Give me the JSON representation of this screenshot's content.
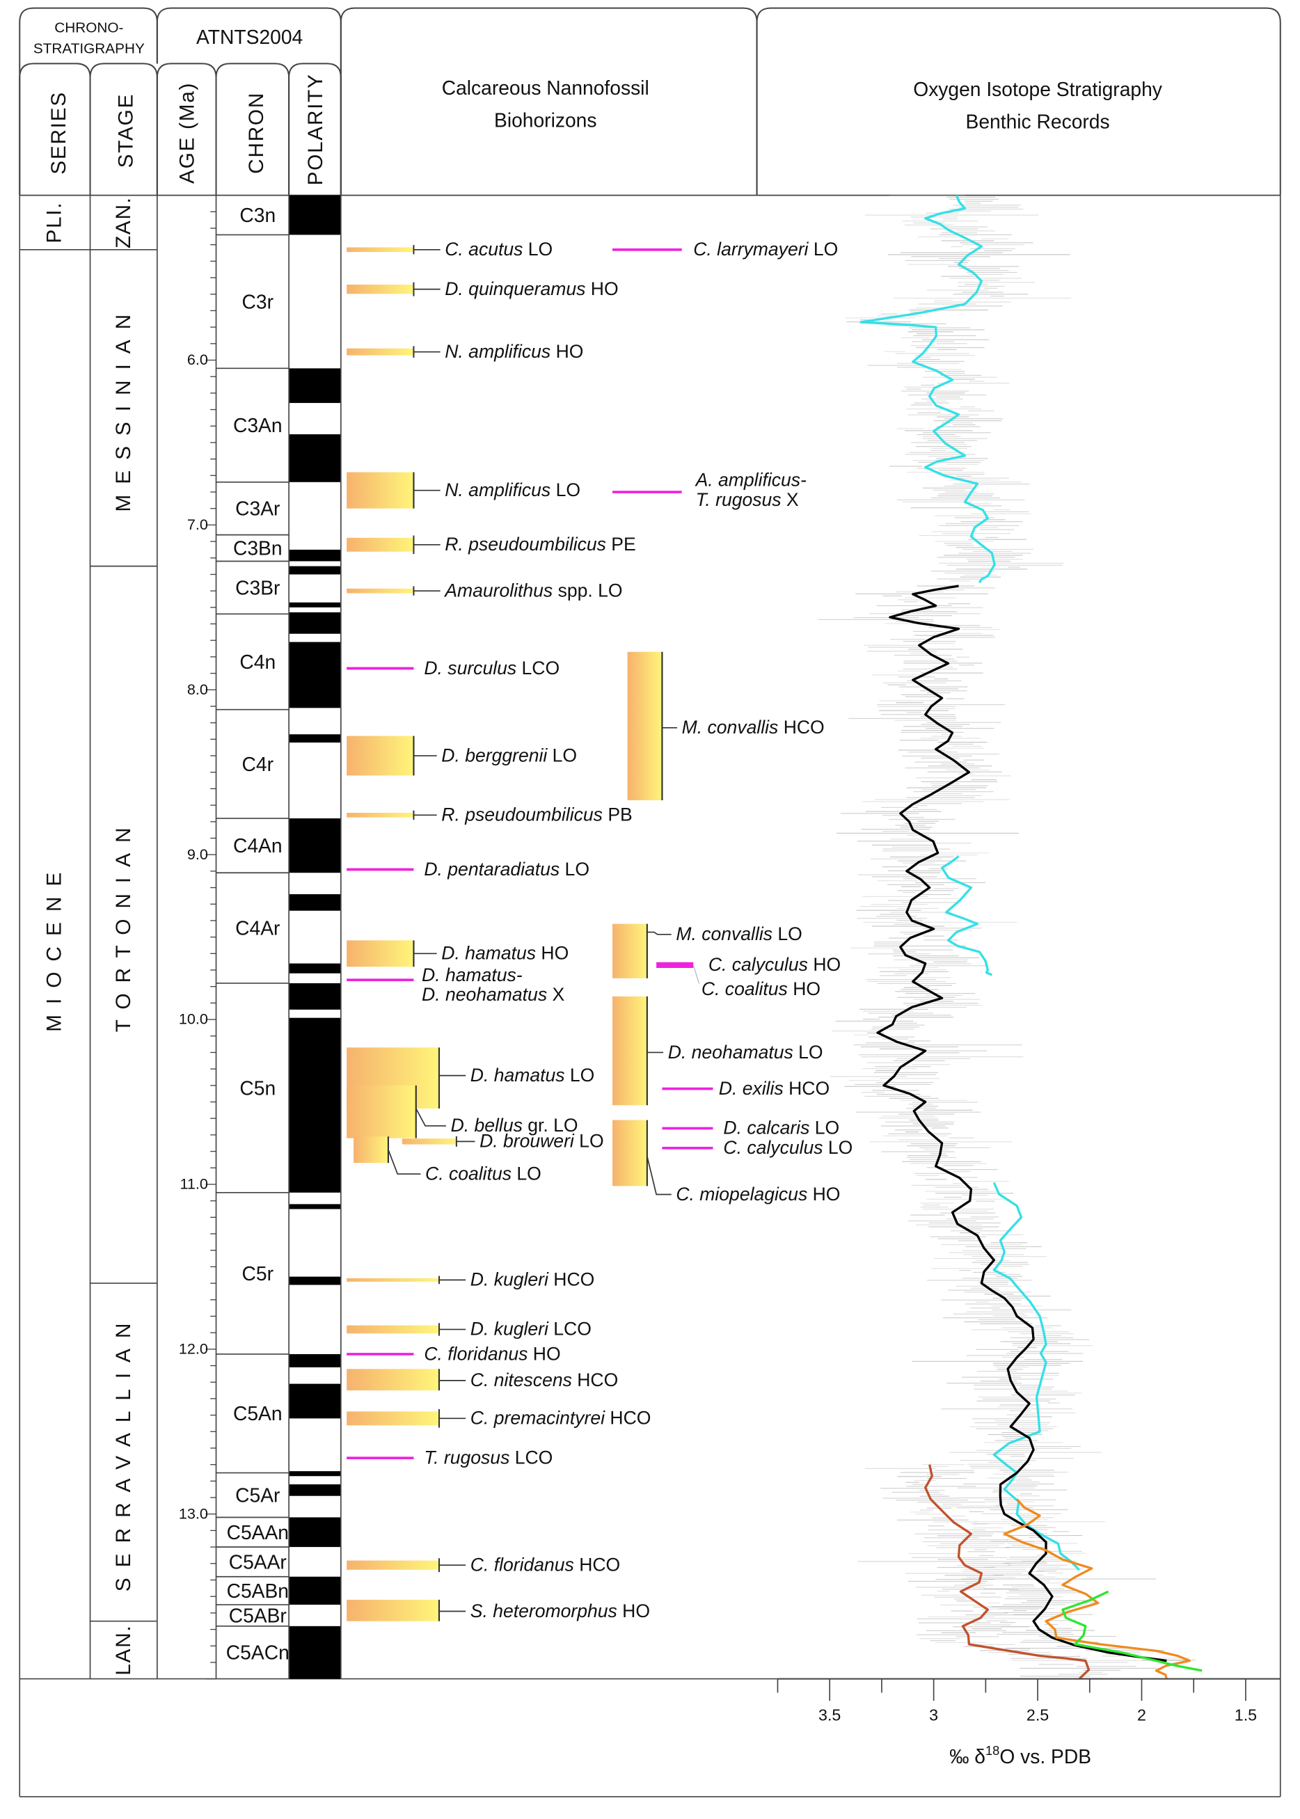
{
  "header": {
    "chrono_line1": "CHRONO-",
    "chrono_line2": "STRATIGRAPHY",
    "timescale": "ATNTS2004",
    "series": "SERIES",
    "stage": "STAGE",
    "age": "AGE (Ma)",
    "chron": "CHRON",
    "polarity": "POLARITY",
    "bio_line1": "Calcareous Nannofossil",
    "bio_line2": "Biohorizons",
    "iso_line1": "Oxygen Isotope Stratigraphy",
    "iso_line2": "Benthic Records"
  },
  "age_axis": {
    "min": 5.0,
    "max": 14.0,
    "labels": [
      "6.0",
      "7.0",
      "8.0",
      "9.0",
      "10.0",
      "11.0",
      "12.0",
      "13.0"
    ],
    "minor_step": 0.1
  },
  "series_units": [
    {
      "name": "PLI.",
      "top": 5.0,
      "base": 5.33
    },
    {
      "name": "MIOCENE",
      "top": 5.33,
      "base": 14.0
    }
  ],
  "stages": [
    {
      "name": "ZAN.",
      "top": 5.0,
      "base": 5.33
    },
    {
      "name": "MESSINIAN",
      "top": 5.33,
      "base": 7.25
    },
    {
      "name": "TORTONIAN",
      "top": 7.25,
      "base": 11.6
    },
    {
      "name": "SERRAVALLIAN",
      "top": 11.6,
      "base": 13.65
    },
    {
      "name": "LAN.",
      "top": 13.65,
      "base": 14.0
    }
  ],
  "chrons": [
    {
      "name": "C3n",
      "top": 5.0,
      "base": 5.24
    },
    {
      "name": "C3r",
      "top": 5.24,
      "base": 6.05
    },
    {
      "name": "C3An",
      "top": 6.05,
      "base": 6.74
    },
    {
      "name": "C3Ar",
      "top": 6.74,
      "base": 7.06
    },
    {
      "name": "C3Bn",
      "top": 7.06,
      "base": 7.22
    },
    {
      "name": "C3Br",
      "top": 7.22,
      "base": 7.54
    },
    {
      "name": "C4n",
      "top": 7.54,
      "base": 8.12
    },
    {
      "name": "C4r",
      "top": 8.12,
      "base": 8.78
    },
    {
      "name": "C4An",
      "top": 8.78,
      "base": 9.11
    },
    {
      "name": "C4Ar",
      "top": 9.11,
      "base": 9.78
    },
    {
      "name": "C5n",
      "top": 9.78,
      "base": 11.05
    },
    {
      "name": "C5r",
      "top": 11.05,
      "base": 12.03
    },
    {
      "name": "C5An",
      "top": 12.03,
      "base": 12.75
    },
    {
      "name": "C5Ar",
      "top": 12.75,
      "base": 13.02
    },
    {
      "name": "C5AAn",
      "top": 13.02,
      "base": 13.2
    },
    {
      "name": "C5AAr",
      "top": 13.2,
      "base": 13.38
    },
    {
      "name": "C5ABn",
      "top": 13.38,
      "base": 13.55
    },
    {
      "name": "C5ABr",
      "top": 13.55,
      "base": 13.68
    },
    {
      "name": "C5ACn",
      "top": 13.68,
      "base": 14.0
    }
  ],
  "normal_polarity": [
    [
      5.0,
      5.24
    ],
    [
      6.05,
      6.26
    ],
    [
      6.45,
      6.74
    ],
    [
      7.15,
      7.22
    ],
    [
      7.25,
      7.3
    ],
    [
      7.47,
      7.5
    ],
    [
      7.53,
      7.66
    ],
    [
      7.71,
      8.11
    ],
    [
      8.27,
      8.32
    ],
    [
      8.78,
      9.11
    ],
    [
      9.24,
      9.34
    ],
    [
      9.66,
      9.72
    ],
    [
      9.78,
      9.94
    ],
    [
      9.99,
      11.05
    ],
    [
      11.12,
      11.15
    ],
    [
      11.56,
      11.61
    ],
    [
      12.03,
      12.11
    ],
    [
      12.21,
      12.42
    ],
    [
      12.74,
      12.77
    ],
    [
      12.82,
      12.89
    ],
    [
      13.02,
      13.2
    ],
    [
      13.38,
      13.55
    ],
    [
      13.68,
      14.0
    ]
  ],
  "biohorizons": [
    {
      "taxon": "C. acutus",
      "event": "LO",
      "age": 5.33,
      "style": "bar"
    },
    {
      "taxon": "D. quinqueramus",
      "event": "HO",
      "age": 5.57,
      "style": "bar"
    },
    {
      "taxon": "N. amplificus",
      "event": "HO",
      "age": 5.95,
      "style": "bar"
    },
    {
      "taxon": "N. amplificus",
      "event": "LO",
      "age": 6.79,
      "range": [
        6.68,
        6.9
      ],
      "style": "box"
    },
    {
      "taxon": "R. pseudoumbilicus",
      "event": "PE",
      "age": 7.12,
      "style": "bar"
    },
    {
      "taxon": "Amaurolithus",
      "event": "spp. LO",
      "age": 7.4,
      "style": "bar"
    },
    {
      "taxon": "D. surculus",
      "event": "LCO",
      "age": 7.87,
      "style": "line"
    },
    {
      "taxon": "D. berggrenii",
      "event": "LO",
      "age": 8.4,
      "range": [
        8.28,
        8.52
      ],
      "style": "box"
    },
    {
      "taxon": "R. pseudoumbilicus",
      "event": "PB",
      "age": 8.76,
      "style": "bar"
    },
    {
      "taxon": "D. pentaradiatus",
      "event": "LO",
      "age": 9.09,
      "style": "line"
    },
    {
      "taxon": "D. hamatus",
      "event": "HO",
      "age": 9.6,
      "range": [
        9.52,
        9.68
      ],
      "style": "box"
    },
    {
      "taxon": "D. hamatus-",
      "taxon2": "D. neohamatus",
      "event": "X",
      "age": 9.76,
      "style": "line"
    },
    {
      "taxon": "D. hamatus",
      "event": "LO",
      "age": 10.34,
      "range": [
        10.17,
        10.54
      ],
      "style": "box"
    },
    {
      "taxon": "D. bellus",
      "event": "gr. LO",
      "age": 10.54,
      "range": [
        10.4,
        10.72
      ],
      "style": "box"
    },
    {
      "taxon": "D. brouweri",
      "event": "LO",
      "age": 10.74,
      "style": "bar"
    },
    {
      "taxon": "C. coalitus",
      "event": "LO",
      "age": 10.79,
      "range": [
        10.71,
        10.87
      ],
      "style": "box"
    },
    {
      "taxon": "D. kugleri",
      "event": "HCO",
      "age": 11.58,
      "style": "bar"
    },
    {
      "taxon": "D. kugleri",
      "event": "LCO",
      "age": 11.88,
      "style": "bar"
    },
    {
      "taxon": "C. floridanus",
      "event": "HO",
      "age": 12.03,
      "style": "line"
    },
    {
      "taxon": "C. nitescens",
      "event": "HCO",
      "age": 12.19,
      "range": [
        12.12,
        12.25
      ],
      "style": "box"
    },
    {
      "taxon": "C. premacintyrei",
      "event": "HCO",
      "age": 12.42,
      "style": "bar"
    },
    {
      "taxon": "T. rugosus",
      "event": "LCO",
      "age": 12.66,
      "style": "line"
    },
    {
      "taxon": "C. floridanus",
      "event": "HCO",
      "age": 13.31,
      "style": "bar"
    },
    {
      "taxon": "S. heteromorphus",
      "event": "HO",
      "age": 13.59,
      "range": [
        13.52,
        13.65
      ],
      "style": "box"
    },
    {
      "taxon": "C. larrymayeri",
      "event": "LO",
      "age": 5.33,
      "style": "line"
    },
    {
      "taxon": "A. amplificus-",
      "taxon2": "T. rugosus",
      "event": "X",
      "age": 6.8,
      "style": "line"
    },
    {
      "taxon": "M. convallis",
      "event": "HCO",
      "age": 8.23,
      "range": [
        7.77,
        8.67
      ],
      "style": "box"
    },
    {
      "taxon": "M. convallis",
      "event": "LO",
      "age": 9.47,
      "range": [
        9.42,
        9.75
      ],
      "style": "box"
    },
    {
      "taxon": "C. calyculus",
      "event": "HO",
      "age": 9.67,
      "style": "line"
    },
    {
      "taxon": "C. coalitus",
      "event": "HO",
      "age": 9.67,
      "style": "label"
    },
    {
      "taxon": "D. neohamatus",
      "event": "LO",
      "age": 10.2,
      "range": [
        9.86,
        10.52
      ],
      "style": "box"
    },
    {
      "taxon": "D. exilis",
      "event": "HCO",
      "age": 10.42,
      "style": "line"
    },
    {
      "taxon": "D. calcaris",
      "event": "LO",
      "age": 10.66,
      "style": "line"
    },
    {
      "taxon": "C. calyculus",
      "event": "LO",
      "age": 10.78,
      "style": "line"
    },
    {
      "taxon": "C. miopelagicus",
      "event": "HO",
      "age": 10.83,
      "range": [
        10.61,
        11.01
      ],
      "style": "box"
    }
  ],
  "colors": {
    "normal_polarity": "#000000",
    "bar_left": "#f6b26e",
    "bar_right": "#fff57a",
    "magenta": "#ee22dd",
    "frame": "#444444"
  },
  "chart_data": {
    "type": "line",
    "xlabel_prefix": "‰ δ",
    "xlabel_sup": "18",
    "xlabel_suffix": "O  vs. PDB",
    "x_reversed": true,
    "xlim": [
      3.75,
      1.35
    ],
    "x_ticks": [
      "3.5",
      "3",
      "2.5",
      "2",
      "1.5"
    ],
    "x_minor_step": 0.25,
    "y_axis": "age (Ma)",
    "ylim": [
      5.0,
      14.0
    ],
    "series": [
      {
        "color": "#35e0e6",
        "points": [
          [
            5.0,
            2.89
          ],
          [
            5.08,
            2.85
          ],
          [
            5.14,
            3.04
          ],
          [
            5.21,
            2.93
          ],
          [
            5.31,
            2.77
          ],
          [
            5.42,
            2.88
          ],
          [
            5.52,
            2.77
          ],
          [
            5.66,
            2.85
          ],
          [
            5.77,
            3.35
          ],
          [
            5.8,
            2.99
          ],
          [
            5.91,
            3.02
          ],
          [
            6.01,
            3.1
          ],
          [
            6.12,
            2.91
          ],
          [
            6.22,
            3.02
          ],
          [
            6.33,
            2.88
          ],
          [
            6.43,
            3.0
          ],
          [
            6.58,
            2.85
          ],
          [
            6.65,
            3.04
          ],
          [
            6.75,
            2.79
          ],
          [
            6.86,
            2.85
          ],
          [
            6.96,
            2.74
          ],
          [
            7.07,
            2.82
          ],
          [
            7.17,
            2.72
          ],
          [
            7.31,
            2.74
          ],
          [
            7.35,
            2.78
          ]
        ]
      },
      {
        "color": "#35e0e6",
        "points": [
          [
            9.01,
            2.88
          ],
          [
            9.08,
            2.96
          ],
          [
            9.2,
            2.82
          ],
          [
            9.35,
            2.94
          ],
          [
            9.42,
            2.79
          ],
          [
            9.52,
            2.93
          ],
          [
            9.59,
            2.78
          ],
          [
            9.7,
            2.74
          ],
          [
            9.73,
            2.72
          ]
        ]
      },
      {
        "color": "#35e0e6",
        "points": [
          [
            10.99,
            2.71
          ],
          [
            11.13,
            2.6
          ],
          [
            11.27,
            2.63
          ],
          [
            11.41,
            2.66
          ],
          [
            11.52,
            2.71
          ],
          [
            11.62,
            2.6
          ],
          [
            11.8,
            2.49
          ],
          [
            11.97,
            2.46
          ],
          [
            12.08,
            2.46
          ],
          [
            12.5,
            2.49
          ],
          [
            12.64,
            2.71
          ],
          [
            12.75,
            2.6
          ],
          [
            12.85,
            2.66
          ],
          [
            13.0,
            2.6
          ],
          [
            13.12,
            2.49
          ],
          [
            13.24,
            2.39
          ],
          [
            13.34,
            2.3
          ]
        ]
      },
      {
        "color": "#000000",
        "points": [
          [
            7.37,
            2.88
          ],
          [
            7.42,
            3.1
          ],
          [
            7.49,
            2.99
          ],
          [
            7.56,
            3.21
          ],
          [
            7.63,
            2.88
          ],
          [
            7.73,
            3.07
          ],
          [
            7.84,
            2.93
          ],
          [
            7.94,
            3.1
          ],
          [
            8.05,
            2.96
          ],
          [
            8.15,
            3.04
          ],
          [
            8.26,
            2.91
          ],
          [
            8.36,
            2.99
          ],
          [
            8.5,
            2.83
          ],
          [
            8.64,
            3.02
          ],
          [
            8.75,
            3.16
          ],
          [
            8.85,
            3.1
          ],
          [
            8.99,
            2.98
          ],
          [
            9.1,
            3.13
          ],
          [
            9.2,
            3.02
          ],
          [
            9.35,
            3.13
          ],
          [
            9.45,
            3.0
          ],
          [
            9.56,
            3.16
          ],
          [
            9.66,
            3.04
          ],
          [
            9.77,
            3.1
          ],
          [
            9.87,
            2.96
          ],
          [
            9.98,
            3.18
          ],
          [
            10.08,
            3.27
          ],
          [
            10.19,
            3.04
          ],
          [
            10.29,
            3.16
          ],
          [
            10.4,
            3.24
          ],
          [
            10.5,
            3.04
          ],
          [
            10.61,
            3.07
          ],
          [
            10.75,
            2.96
          ],
          [
            10.89,
            2.99
          ],
          [
            11.03,
            2.82
          ],
          [
            11.17,
            2.91
          ],
          [
            11.31,
            2.79
          ],
          [
            11.46,
            2.71
          ],
          [
            11.6,
            2.77
          ],
          [
            11.69,
            2.66
          ],
          [
            11.8,
            2.6
          ],
          [
            11.94,
            2.52
          ],
          [
            12.05,
            2.6
          ],
          [
            12.19,
            2.63
          ],
          [
            12.33,
            2.54
          ],
          [
            12.47,
            2.63
          ],
          [
            12.61,
            2.52
          ],
          [
            12.75,
            2.6
          ],
          [
            12.89,
            2.68
          ],
          [
            13.0,
            2.66
          ],
          [
            13.1,
            2.52
          ],
          [
            13.24,
            2.46
          ],
          [
            13.36,
            2.54
          ],
          [
            13.5,
            2.43
          ],
          [
            13.65,
            2.52
          ],
          [
            13.75,
            2.43
          ],
          [
            13.84,
            2.16
          ],
          [
            13.89,
            1.88
          ]
        ]
      },
      {
        "color": "#f08a1e",
        "points": [
          [
            12.91,
            2.6
          ],
          [
            13.01,
            2.49
          ],
          [
            13.12,
            2.66
          ],
          [
            13.22,
            2.46
          ],
          [
            13.33,
            2.24
          ],
          [
            13.43,
            2.38
          ],
          [
            13.54,
            2.21
          ],
          [
            13.65,
            2.46
          ],
          [
            13.75,
            2.41
          ],
          [
            13.83,
            1.93
          ],
          [
            13.89,
            1.77
          ],
          [
            13.95,
            1.93
          ],
          [
            14.0,
            1.88
          ]
        ]
      },
      {
        "color": "#2ee62e",
        "points": [
          [
            13.47,
            2.16
          ],
          [
            13.58,
            2.38
          ],
          [
            13.68,
            2.27
          ],
          [
            13.79,
            2.32
          ],
          [
            13.89,
            1.93
          ],
          [
            13.95,
            1.71
          ]
        ]
      },
      {
        "color": "#c0522e",
        "points": [
          [
            12.7,
            3.02
          ],
          [
            12.84,
            3.04
          ],
          [
            12.98,
            2.96
          ],
          [
            13.12,
            2.82
          ],
          [
            13.26,
            2.88
          ],
          [
            13.36,
            2.77
          ],
          [
            13.47,
            2.87
          ],
          [
            13.58,
            2.74
          ],
          [
            13.68,
            2.86
          ],
          [
            13.79,
            2.83
          ],
          [
            13.86,
            2.49
          ],
          [
            13.89,
            2.27
          ],
          [
            14.0,
            2.3
          ]
        ]
      }
    ]
  }
}
